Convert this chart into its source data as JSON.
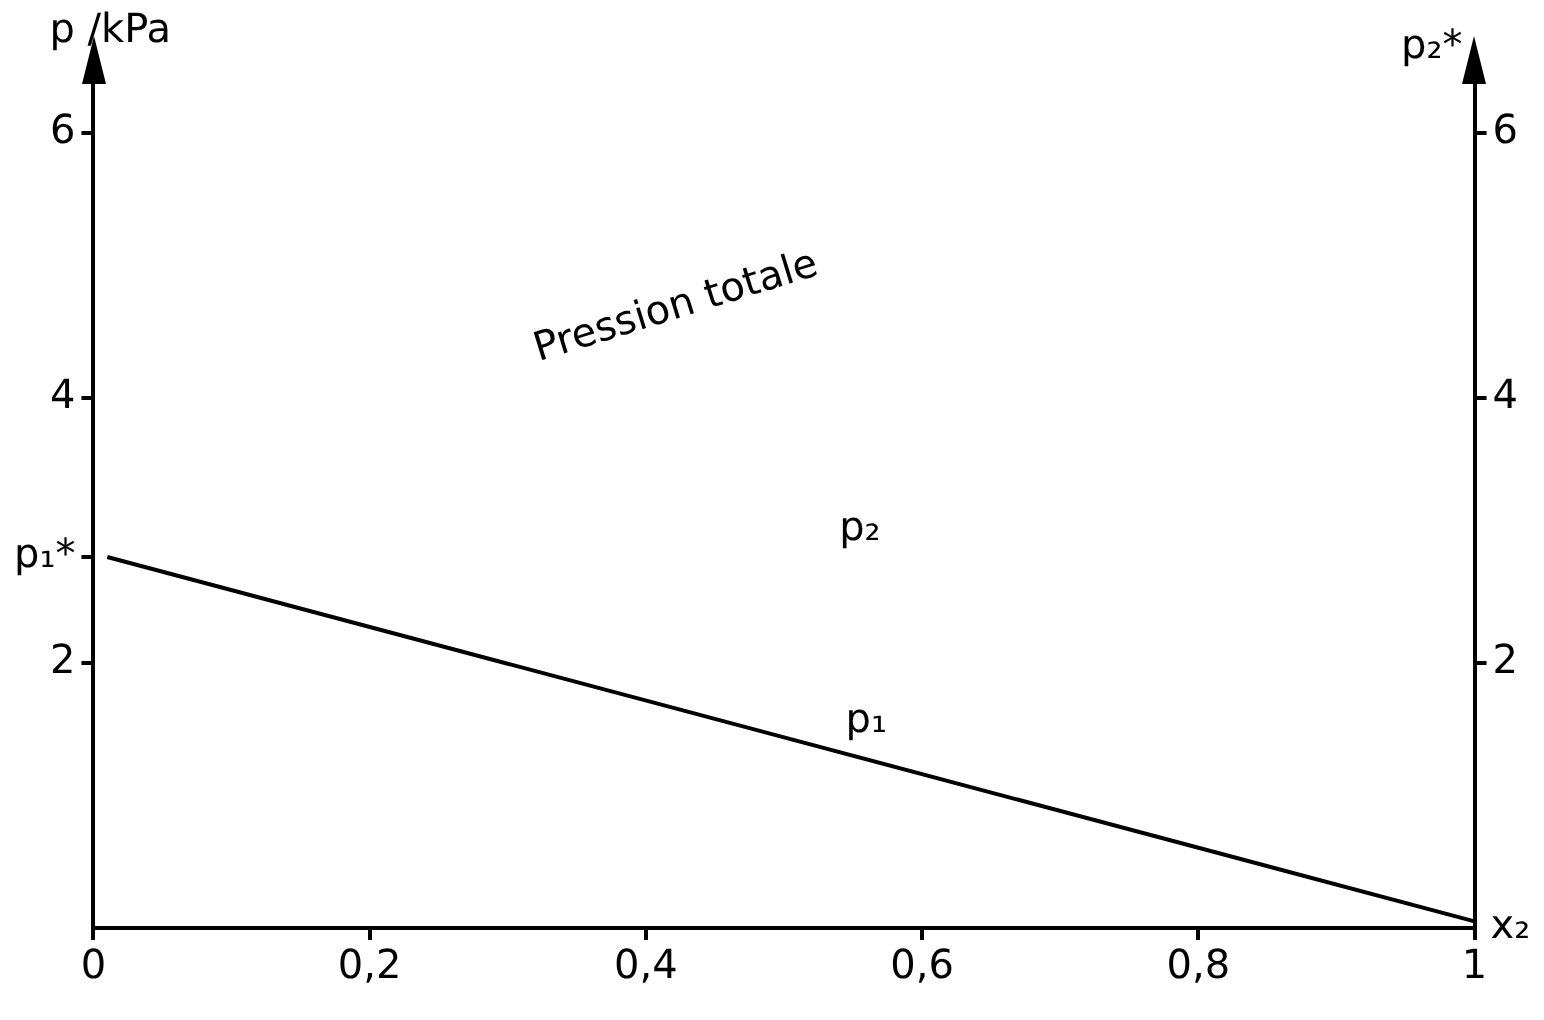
{
  "chart_data": {
    "type": "line",
    "ylabel": "p /kPa",
    "xlabel": "x₂",
    "y2label": "p₂*",
    "x": [
      0.01,
      1
    ],
    "series": [
      {
        "name": "p₁",
        "color": "#000000",
        "values": [
          2.8,
          0.05
        ]
      }
    ],
    "xlim": [
      0,
      1
    ],
    "xticks": [
      0,
      {
        "value": 0.2,
        "label": "0,2"
      },
      {
        "value": 0.4,
        "label": "0,4"
      },
      {
        "value": 0.6,
        "label": "0,6"
      },
      {
        "value": 0.8,
        "label": "0,8"
      },
      1
    ],
    "ylim": [
      0,
      6.4
    ],
    "yticks": [
      2,
      {
        "value": 2.8,
        "label": "p₁*"
      },
      4,
      6
    ],
    "y2lim": [
      0,
      6.4
    ],
    "y2ticks": [
      2,
      4,
      6
    ],
    "annotations": [
      "Pression totale",
      "p₂"
    ],
    "grid": false,
    "legend": false,
    "marker": "none",
    "line_style": "solid"
  }
}
